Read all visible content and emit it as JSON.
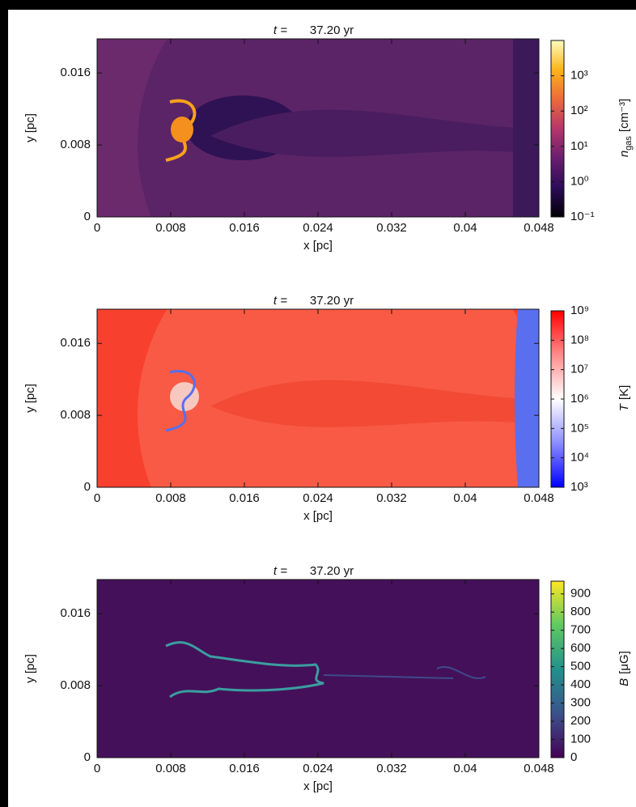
{
  "chart_data": [
    {
      "type": "image",
      "title": "t =",
      "time": "37.20 yr",
      "xlabel": "x [pc]",
      "ylabel": "y [pc]",
      "xlim": [
        0,
        0.048
      ],
      "ylim": [
        0,
        0.0198
      ],
      "xticks": [
        0,
        0.008,
        0.016,
        0.024,
        0.032,
        0.04,
        0.048
      ],
      "yticks": [
        0,
        0.008,
        0.016
      ],
      "colorbar": {
        "label": {
          "symbol": "n",
          "subscript": "gas",
          "unit": "[cm⁻³]"
        },
        "log": true,
        "lim": [
          0.1,
          10000
        ],
        "ticks": [
          {
            "value": 0.1,
            "label": "10⁻¹"
          },
          {
            "value": 1,
            "label": "10⁰"
          },
          {
            "value": 10,
            "label": "10¹"
          },
          {
            "value": 100,
            "label": "10²"
          },
          {
            "value": 1000,
            "label": "10³"
          }
        ],
        "colors": [
          "#000004",
          "#2d0b59",
          "#6a1e6e",
          "#b5366b",
          "#ec6a3b",
          "#fbb41a",
          "#fcfdbf"
        ]
      }
    },
    {
      "type": "image",
      "title": "t =",
      "time": "37.20 yr",
      "xlabel": "x [pc]",
      "ylabel": "y [pc]",
      "xlim": [
        0,
        0.048
      ],
      "ylim": [
        0,
        0.0198
      ],
      "xticks": [
        0,
        0.008,
        0.016,
        0.024,
        0.032,
        0.04,
        0.048
      ],
      "yticks": [
        0,
        0.008,
        0.016
      ],
      "colorbar": {
        "label": {
          "symbol": "T",
          "subscript": null,
          "unit": "[K]"
        },
        "log": true,
        "lim": [
          1000,
          1000000000
        ],
        "ticks": [
          {
            "value": 1000,
            "label": "10³"
          },
          {
            "value": 10000,
            "label": "10⁴"
          },
          {
            "value": 100000,
            "label": "10⁵"
          },
          {
            "value": 1000000,
            "label": "10⁶"
          },
          {
            "value": 10000000,
            "label": "10⁷"
          },
          {
            "value": 100000000,
            "label": "10⁸"
          },
          {
            "value": 1000000000,
            "label": "10⁹"
          }
        ],
        "colors": [
          "#0000ff",
          "#8c8cff",
          "#ffffff",
          "#ff8c8c",
          "#ff0000"
        ]
      }
    },
    {
      "type": "image",
      "title": "t =",
      "time": "37.20 yr",
      "xlabel": "x [pc]",
      "ylabel": "y [pc]",
      "xlim": [
        0,
        0.048
      ],
      "ylim": [
        0,
        0.0198
      ],
      "xticks": [
        0,
        0.008,
        0.016,
        0.024,
        0.032,
        0.04,
        0.048
      ],
      "yticks": [
        0,
        0.008,
        0.016
      ],
      "colorbar": {
        "label": {
          "symbol": "B",
          "subscript": null,
          "unit": "[μG]"
        },
        "log": false,
        "lim": [
          0,
          970
        ],
        "ticks": [
          0,
          100,
          200,
          300,
          400,
          500,
          600,
          700,
          800,
          900
        ],
        "colors": [
          "#440154",
          "#3b528b",
          "#21918c",
          "#5ec962",
          "#fde725"
        ]
      }
    }
  ]
}
